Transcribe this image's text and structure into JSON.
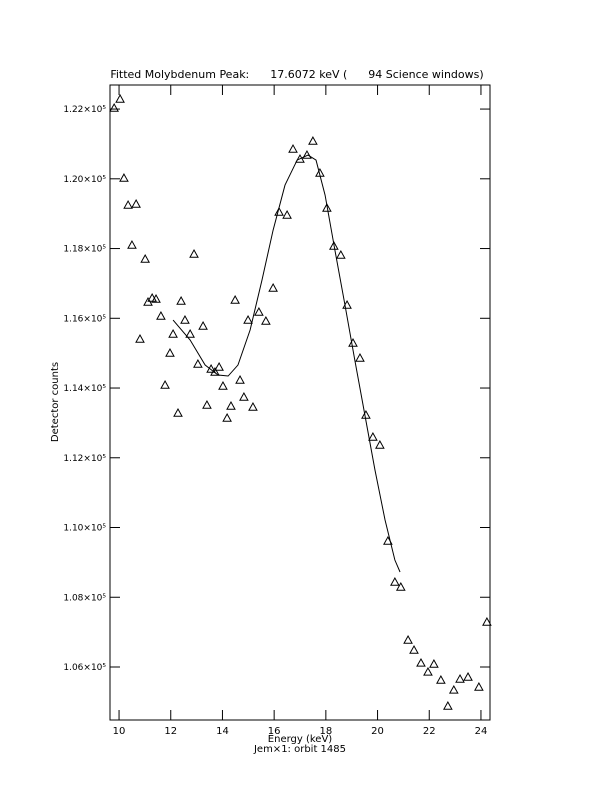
{
  "chart_data": {
    "type": "scatter",
    "title": "Fitted Molybdenum Peak:      17.6072 keV (      94 Science windows)",
    "x_label": "Energy (keV)",
    "y_label": "Detector counts",
    "footnote": "Jem×1: orbit 1485",
    "xlim": [
      9.65,
      24.35
    ],
    "xticks": [
      10,
      12,
      14,
      16,
      18,
      20,
      22,
      24
    ],
    "ylim": [
      104480,
      122690
    ],
    "yticks": [
      {
        "value": 106000,
        "label": "1.06×10⁵"
      },
      {
        "value": 108000,
        "label": "1.08×10⁵"
      },
      {
        "value": 110000,
        "label": "1.10×10⁵"
      },
      {
        "value": 112000,
        "label": "1.12×10⁵"
      },
      {
        "value": 114000,
        "label": "1.14×10⁵"
      },
      {
        "value": 116000,
        "label": "1.16×10⁵"
      },
      {
        "value": 118000,
        "label": "1.18×10⁵"
      },
      {
        "value": 120000,
        "label": "1.20×10⁵"
      },
      {
        "value": 122000,
        "label": "1.22×10⁵"
      }
    ],
    "color": "#000000",
    "x": [
      9.81,
      10.04,
      10.19,
      10.35,
      10.66,
      10.5,
      11.01,
      10.81,
      11.12,
      11.28,
      11.43,
      11.62,
      11.78,
      11.97,
      12.09,
      12.28,
      12.4,
      12.55,
      12.75,
      12.9,
      13.05,
      13.25,
      13.4,
      13.56,
      13.71,
      13.87,
      14.02,
      14.18,
      14.33,
      14.49,
      14.68,
      14.83,
      14.99,
      15.18,
      15.41,
      15.68,
      15.96,
      16.19,
      16.5,
      16.73,
      17.0,
      17.27,
      17.5,
      17.77,
      18.04,
      18.31,
      18.58,
      18.82,
      19.05,
      19.32,
      19.55,
      19.82,
      20.09,
      20.4,
      20.67,
      20.9,
      21.18,
      21.41,
      21.68,
      21.95,
      22.18,
      22.45,
      22.72,
      22.95,
      23.19,
      23.5,
      23.92,
      24.23
    ],
    "values": [
      122029,
      122287,
      120021,
      119247,
      119276,
      118100,
      117699,
      115405,
      116466,
      116581,
      116552,
      116064,
      114086,
      115004,
      115548,
      113283,
      116495,
      115950,
      115548,
      117842,
      114688,
      115778,
      113512,
      114545,
      114459,
      114602,
      114057,
      113139,
      113484,
      116523,
      114229,
      113742,
      115950,
      113455,
      116179,
      115921,
      116867,
      119047,
      118961,
      120853,
      120566,
      120681,
      121082,
      120165,
      119161,
      118072,
      117814,
      116380,
      115290,
      114860,
      113226,
      112595,
      112366,
      109613,
      108437,
      108294,
      106774,
      106487,
      106115,
      105857,
      106086,
      105627,
      104881,
      105341,
      105656,
      105713,
      105426,
      107290
    ],
    "fit": {
      "x": [
        12.09,
        12.75,
        13.33,
        13.83,
        14.22,
        14.6,
        15.07,
        15.53,
        15.96,
        16.42,
        16.89,
        17.31,
        17.62,
        17.97,
        18.35,
        18.74,
        19.12,
        19.51,
        19.9,
        20.29,
        20.67,
        20.87
      ],
      "values": [
        115950,
        115376,
        114659,
        114373,
        114344,
        114659,
        115663,
        117097,
        118530,
        119820,
        120537,
        120681,
        120537,
        119533,
        117956,
        116380,
        114803,
        113226,
        111649,
        110215,
        109068,
        108724
      ]
    }
  }
}
